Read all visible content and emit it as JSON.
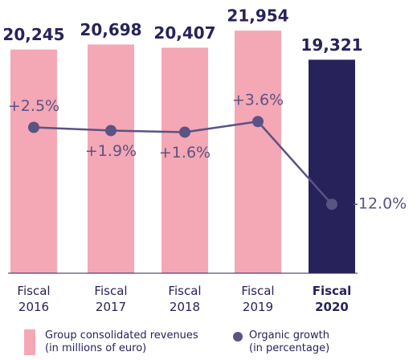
{
  "chart_data": {
    "type": "bar_line",
    "categories": [
      "Fiscal 2016",
      "Fiscal 2017",
      "Fiscal 2018",
      "Fiscal 2019",
      "Fiscal 2020"
    ],
    "series": [
      {
        "name": "Group consolidated revenues (in millions of euro)",
        "type": "bar",
        "color": "#f4a7b5",
        "colors": [
          "#f4a7b5",
          "#f4a7b5",
          "#f4a7b5",
          "#f4a7b5",
          "#27235a"
        ],
        "values": [
          20245,
          20698,
          20407,
          21954,
          19321
        ],
        "value_labels": [
          "20,245",
          "20,698",
          "20,407",
          "21,954",
          "19,321"
        ]
      },
      {
        "name": "Organic growth (in percentage)",
        "type": "line",
        "axis": "y2",
        "color": "#5a5384",
        "values": [
          2.5,
          1.9,
          1.6,
          3.6,
          -12.0
        ],
        "value_labels": [
          "+2.5%",
          "+1.9%",
          "+1.6%",
          "+3.6%",
          "-12.0%"
        ]
      }
    ],
    "ylim": [
      0,
      24000
    ],
    "y2lim": [
      -25,
      25
    ],
    "grid": false
  }
}
